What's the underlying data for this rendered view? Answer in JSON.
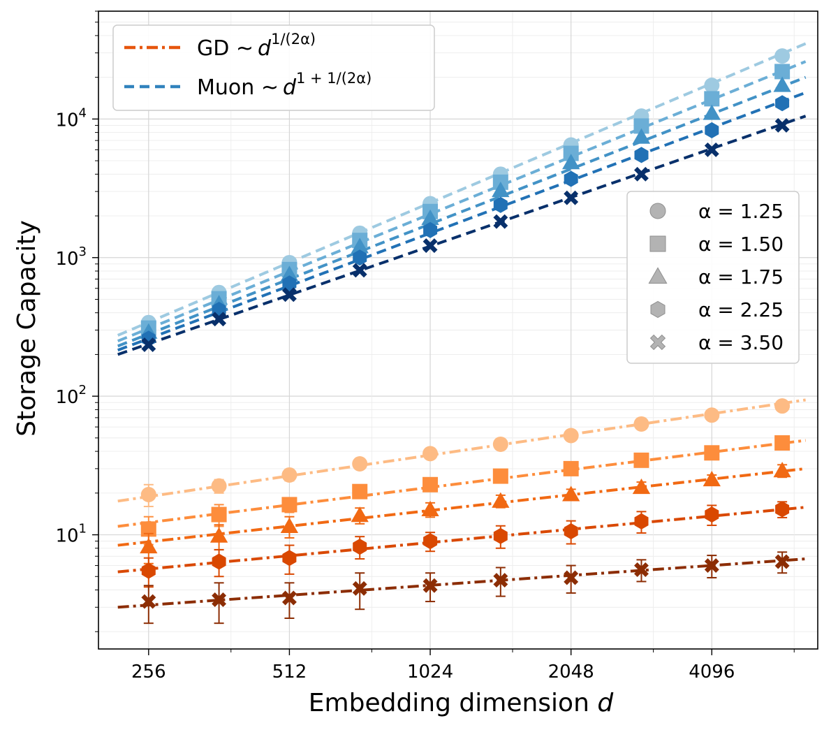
{
  "chart_data": {
    "type": "scatter",
    "title": "",
    "xlabel": "Embedding dimension",
    "xlabel_var": "d",
    "ylabel": "Storage Capacity",
    "xscale": "log2",
    "yscale": "log10",
    "xlim": [
      200,
      6900
    ],
    "ylim": [
      1.5,
      60000
    ],
    "x_ticks": [
      256,
      512,
      1024,
      2048,
      4096
    ],
    "x_tick_labels": [
      "256",
      "512",
      "1024",
      "2048",
      "4096"
    ],
    "y_ticks": [
      10,
      100,
      1000,
      10000
    ],
    "y_tick_labels": [
      {
        "base": "10",
        "exp": "1"
      },
      {
        "base": "10",
        "exp": "2"
      },
      {
        "base": "10",
        "exp": "3"
      },
      {
        "base": "10",
        "exp": "4"
      }
    ],
    "grid": true,
    "x": [
      256,
      362,
      512,
      724,
      1024,
      1448,
      2048,
      2896,
      4096,
      5793
    ],
    "fit_x_range": [
      220,
      6500
    ],
    "method_legend": {
      "placement": "top-left",
      "entries": [
        {
          "method": "GD",
          "label": "GD",
          "scaling_prefix": "~",
          "scaling_base": "d",
          "scaling_exp": "1/(2α)",
          "color": "#e6550d",
          "dash": "dashdot"
        },
        {
          "method": "Muon",
          "label": "Muon",
          "scaling_prefix": "~",
          "scaling_base": "d",
          "scaling_exp": "1 + 1/(2α)",
          "color": "#3182bd",
          "dash": "dashed"
        }
      ]
    },
    "alpha_legend": {
      "placement": "center-right",
      "entries": [
        {
          "marker": "circle",
          "label": "α = 1.25"
        },
        {
          "marker": "square",
          "label": "α = 1.50"
        },
        {
          "marker": "triangle",
          "label": "α = 1.75"
        },
        {
          "marker": "hexagon",
          "label": "α = 2.25"
        },
        {
          "marker": "x",
          "label": "α = 3.50"
        }
      ]
    },
    "series": [
      {
        "method": "Muon",
        "alpha": 1.25,
        "marker": "circle",
        "color": "#9ecae1",
        "values": [
          340,
          560,
          920,
          1500,
          2450,
          4000,
          6500,
          10500,
          17500,
          28500
        ],
        "fit": [
          275,
          35000
        ]
      },
      {
        "method": "Muon",
        "alpha": 1.5,
        "marker": "square",
        "color": "#6baed6",
        "values": [
          310,
          505,
          820,
          1330,
          2150,
          3500,
          5650,
          8900,
          14000,
          22000
        ],
        "fit": [
          250,
          26000
        ]
      },
      {
        "method": "Muon",
        "alpha": 1.75,
        "marker": "triangle",
        "color": "#4292c6",
        "values": [
          290,
          465,
          755,
          1200,
          1920,
          3050,
          4850,
          7400,
          11000,
          17500
        ],
        "fit": [
          230,
          20000
        ]
      },
      {
        "method": "Muon",
        "alpha": 2.25,
        "marker": "hexagon",
        "color": "#2171b5",
        "values": [
          260,
          420,
          650,
          1000,
          1580,
          2400,
          3700,
          5500,
          8300,
          13000
        ],
        "fit": [
          215,
          15500
        ]
      },
      {
        "method": "Muon",
        "alpha": 3.5,
        "marker": "x",
        "color": "#08306b",
        "values": [
          235,
          360,
          540,
          810,
          1220,
          1820,
          2700,
          4000,
          6000,
          9000
        ],
        "fit": [
          200,
          10500
        ]
      },
      {
        "method": "GD",
        "alpha": 1.25,
        "marker": "circle",
        "color": "#fdbb84",
        "values": [
          19.5,
          22.5,
          27,
          32.5,
          38.5,
          45,
          52,
          63,
          73,
          85
        ],
        "errors": [
          3.5,
          2.5,
          2.5,
          2,
          2,
          2,
          2,
          2,
          2,
          2
        ],
        "fit": [
          17.5,
          94
        ]
      },
      {
        "method": "GD",
        "alpha": 1.5,
        "marker": "square",
        "color": "#fd8d3c",
        "values": [
          11,
          14,
          16.5,
          20.5,
          23,
          26.5,
          30,
          34.5,
          39,
          46
        ],
        "errors": [
          2.5,
          2.5,
          2,
          2,
          2,
          2,
          2,
          2,
          2,
          2.5
        ],
        "fit": [
          11.5,
          48
        ]
      },
      {
        "method": "GD",
        "alpha": 1.75,
        "marker": "triangle",
        "color": "#f16913",
        "values": [
          8.2,
          9.8,
          11.5,
          13.8,
          15.2,
          17.5,
          19.5,
          22,
          25,
          29
        ],
        "errors": [
          2.0,
          2.0,
          2.0,
          1.8,
          1.8,
          1.8,
          1.8,
          2,
          2,
          3
        ],
        "fit": [
          8.4,
          30
        ]
      },
      {
        "method": "GD",
        "alpha": 2.25,
        "marker": "hexagon",
        "color": "#d94801",
        "values": [
          5.5,
          6.4,
          6.8,
          8.2,
          9.0,
          9.8,
          10.6,
          12.5,
          14,
          15.3
        ],
        "errors": [
          1.3,
          1.4,
          1.6,
          1.5,
          1.4,
          1.8,
          2.0,
          2.2,
          2.3,
          2.0
        ],
        "fit": [
          5.4,
          15.8
        ]
      },
      {
        "method": "GD",
        "alpha": 3.5,
        "marker": "x",
        "color": "#8c2d04",
        "values": [
          3.3,
          3.4,
          3.5,
          4.1,
          4.3,
          4.7,
          4.9,
          5.6,
          6.0,
          6.4
        ],
        "errors": [
          1.0,
          1.1,
          1.0,
          1.2,
          1.0,
          1.1,
          1.1,
          1.0,
          1.1,
          1.1
        ],
        "fit": [
          3.0,
          6.7
        ]
      }
    ]
  }
}
